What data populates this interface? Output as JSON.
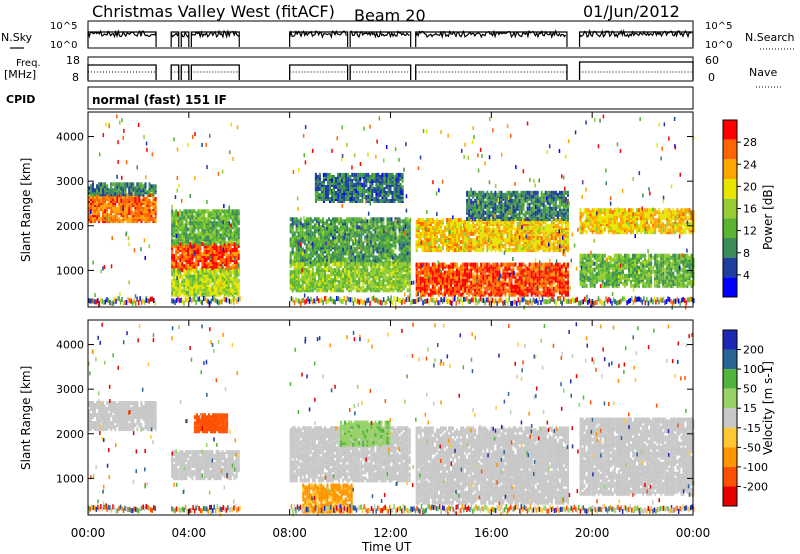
{
  "header": {
    "station": "Christmas Valley West (fitACF)",
    "beam": "Beam 20",
    "date": "01/Jun/2012"
  },
  "status_panels": {
    "nsky_label": "N.Sky",
    "nsky_ticks": [
      "10^5",
      "10^0"
    ],
    "nsearch_label": "N.Search",
    "nsearch_ticks": [
      "10^5",
      "10^0"
    ],
    "freq_label_line1": "Freq.",
    "freq_label_line2": "[MHz]",
    "freq_ticks": [
      "18",
      "8"
    ],
    "nave_label": "Nave",
    "nave_ticks": [
      "60",
      "0"
    ],
    "cpid_label": "CPID",
    "cpid_text": "normal (fast) 151 IF"
  },
  "colors": {
    "power_scale": [
      "#0000ff",
      "#1e3fa0",
      "#3c8c5a",
      "#5ab432",
      "#96cd32",
      "#e6e600",
      "#ffa500",
      "#ff6400",
      "#ff0000"
    ],
    "velocity_scale": [
      "#e60000",
      "#ff5000",
      "#ff9600",
      "#ffc832",
      "#c8c8c8",
      "#96d264",
      "#50b43c",
      "#286496",
      "#1e28b4"
    ]
  },
  "chart_data": [
    {
      "type": "heatmap",
      "title": "Power",
      "ylabel": "Slant Range [km]",
      "xlabel": "Time UT",
      "yticks": [
        "1000",
        "2000",
        "3000",
        "4000"
      ],
      "ylim": [
        180,
        4550
      ],
      "xticks": [
        "00:00",
        "04:00",
        "08:00",
        "12:00",
        "16:00",
        "20:00",
        "00:00"
      ],
      "xlim": [
        0,
        24
      ],
      "colorbar_label": "Power [dB]",
      "colorbar_ticks": [
        "4",
        "8",
        "12",
        "16",
        "20",
        "24",
        "28"
      ],
      "colorbar_range": [
        0,
        30
      ],
      "bands": [
        {
          "t": [
            0.0,
            2.7
          ],
          "range_km": [
            2150,
            2750
          ],
          "value": 24
        },
        {
          "t": [
            0.0,
            2.7
          ],
          "range_km": [
            2750,
            3000
          ],
          "value": 8
        },
        {
          "t": [
            3.3,
            6.0
          ],
          "range_km": [
            1050,
            1650
          ],
          "value": 26
        },
        {
          "t": [
            3.3,
            6.0
          ],
          "range_km": [
            500,
            1050
          ],
          "value": 16
        },
        {
          "t": [
            3.3,
            6.0
          ],
          "range_km": [
            1650,
            2400
          ],
          "value": 12
        },
        {
          "t": [
            8.0,
            12.8
          ],
          "range_km": [
            1200,
            2200
          ],
          "value": 10
        },
        {
          "t": [
            8.0,
            12.8
          ],
          "range_km": [
            600,
            1200
          ],
          "value": 14
        },
        {
          "t": [
            9.0,
            12.5
          ],
          "range_km": [
            2600,
            3200
          ],
          "value": 7
        },
        {
          "t": [
            13.0,
            19.0
          ],
          "range_km": [
            1500,
            2200
          ],
          "value": 20
        },
        {
          "t": [
            13.0,
            19.0
          ],
          "range_km": [
            500,
            1200
          ],
          "value": 26
        },
        {
          "t": [
            15.0,
            19.0
          ],
          "range_km": [
            2200,
            2800
          ],
          "value": 8
        },
        {
          "t": [
            19.5,
            24.0
          ],
          "range_km": [
            1900,
            2400
          ],
          "value": 20
        },
        {
          "t": [
            19.5,
            24.0
          ],
          "range_km": [
            700,
            1400
          ],
          "value": 12
        }
      ]
    },
    {
      "type": "heatmap",
      "title": "Velocity",
      "ylabel": "Slant Range [km]",
      "xlabel": "Time UT",
      "yticks": [
        "1000",
        "2000",
        "3000",
        "4000"
      ],
      "ylim": [
        180,
        4550
      ],
      "xticks": [
        "00:00",
        "04:00",
        "08:00",
        "12:00",
        "16:00",
        "20:00",
        "00:00"
      ],
      "xlim": [
        0,
        24
      ],
      "colorbar_label": "Velocity [m s-1]",
      "colorbar_ticks": [
        "200",
        "100",
        "50",
        "15",
        "-15",
        "-50",
        "-100",
        "-200"
      ],
      "colorbar_range": [
        -250,
        250
      ],
      "bands": [
        {
          "t": [
            0.0,
            2.7
          ],
          "range_km": [
            2150,
            2750
          ],
          "value": 0
        },
        {
          "t": [
            3.3,
            6.0
          ],
          "range_km": [
            1050,
            1650
          ],
          "value": 0
        },
        {
          "t": [
            4.2,
            5.5
          ],
          "range_km": [
            2100,
            2500
          ],
          "value": -120
        },
        {
          "t": [
            8.0,
            12.8
          ],
          "range_km": [
            1000,
            2200
          ],
          "value": 0
        },
        {
          "t": [
            10.0,
            12.0
          ],
          "range_km": [
            1800,
            2300
          ],
          "value": 40
        },
        {
          "t": [
            8.5,
            10.5
          ],
          "range_km": [
            300,
            900
          ],
          "value": -60
        },
        {
          "t": [
            13.0,
            19.0
          ],
          "range_km": [
            500,
            2200
          ],
          "value": 0
        },
        {
          "t": [
            19.5,
            24.0
          ],
          "range_km": [
            700,
            2400
          ],
          "value": 0
        }
      ]
    }
  ]
}
